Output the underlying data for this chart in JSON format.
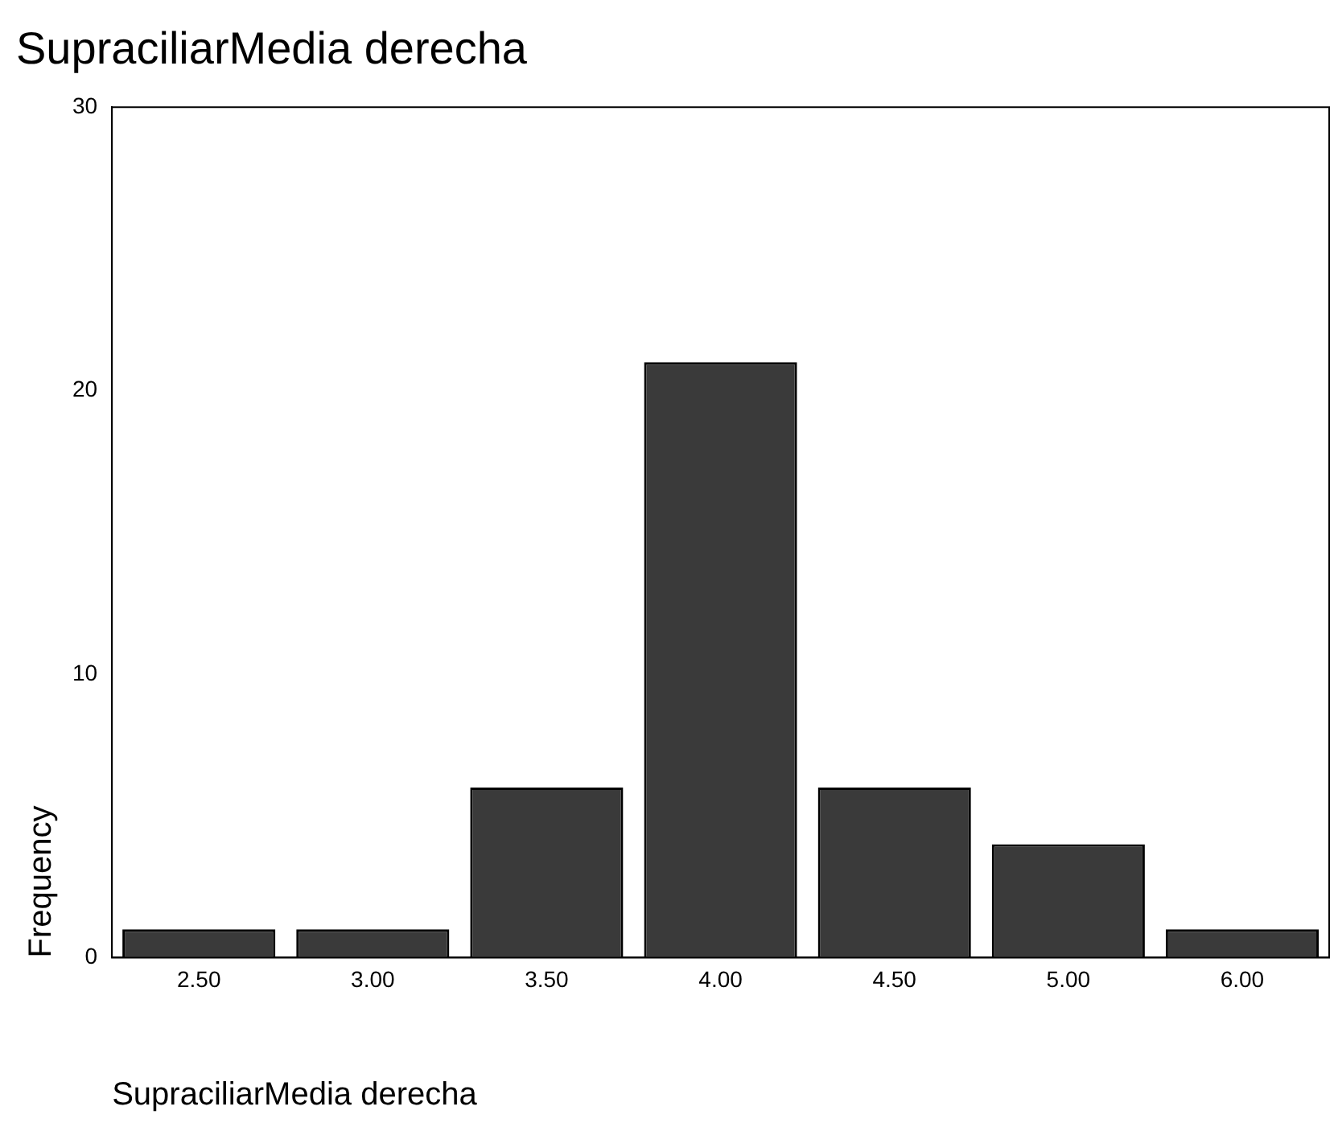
{
  "chart_data": {
    "type": "bar",
    "title": "SupraciliarMedia derecha",
    "xlabel": "SupraciliarMedia derecha",
    "ylabel": "Frequency",
    "categories": [
      "2.50",
      "3.00",
      "3.50",
      "4.00",
      "4.50",
      "5.00",
      "6.00"
    ],
    "values": [
      1,
      1,
      6,
      21,
      6,
      4,
      1
    ],
    "color": "#3a3a3a",
    "ylim": [
      0,
      30
    ],
    "yticks": [
      0,
      10,
      20,
      30
    ],
    "grid": false,
    "legend": false
  }
}
